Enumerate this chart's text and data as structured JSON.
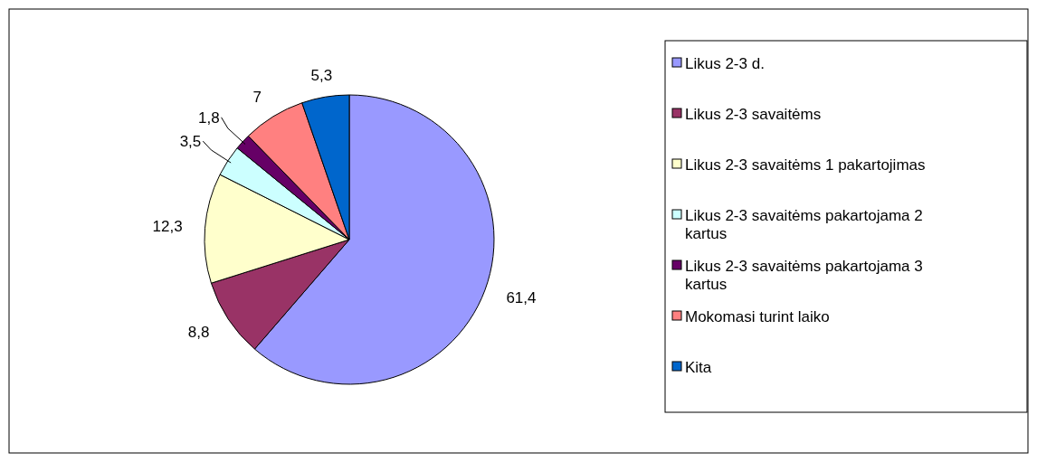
{
  "chart_data": {
    "type": "pie",
    "categories": [
      "Likus 2-3 d.",
      "Likus 2-3 savaitėms",
      "Likus 2-3 savaitėms 1 pakartojimas",
      "Likus 2-3 savaitėms pakartojama 2 kartus",
      "Likus 2-3 savaitėms pakartojama 3 kartus",
      "Mokomasi turint laiko",
      "Kita"
    ],
    "values": [
      61.4,
      8.8,
      12.3,
      3.5,
      1.8,
      7,
      5.3
    ],
    "colors": [
      "#9999ff",
      "#993366",
      "#ffffcc",
      "#ccffff",
      "#660066",
      "#ff8080",
      "#0066cc"
    ],
    "value_labels": [
      "61,4",
      "8,8",
      "12,3",
      "3,5",
      "1,8",
      "7",
      "5,3"
    ],
    "legend": "right"
  }
}
